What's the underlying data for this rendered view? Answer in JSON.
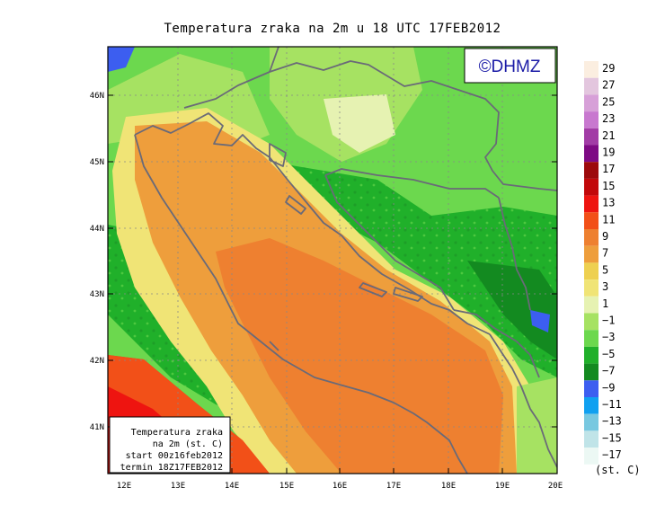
{
  "title": "Temperatura zraka na 2m u 18 UTC 17FEB2012",
  "logo": "©DHMZ",
  "axes": {
    "lat_labels": [
      "46N",
      "45N",
      "44N",
      "43N",
      "42N",
      "41N"
    ],
    "lon_labels": [
      "12E",
      "13E",
      "14E",
      "15E",
      "16E",
      "17E",
      "18E",
      "19E",
      "20E"
    ]
  },
  "infobox": {
    "lines": [
      "Temperatura zraka",
      "na 2m (st. C)",
      "start 00z16feb2012",
      "termin 18Z17FEB2012"
    ]
  },
  "legend": {
    "unit": "(st. C)",
    "labels": [
      "29",
      "27",
      "25",
      "23",
      "21",
      "19",
      "17",
      "15",
      "13",
      "11",
      "9",
      "7",
      "5",
      "3",
      "1",
      "−1",
      "−3",
      "−5",
      "−7",
      "−9",
      "−11",
      "−13",
      "−15",
      "−17"
    ],
    "colors": [
      "#fbeee0",
      "#e3c6de",
      "#d7a0d8",
      "#c878cf",
      "#a23ca6",
      "#7e0a84",
      "#9c0a0c",
      "#c2080a",
      "#ee1410",
      "#f25018",
      "#ee8030",
      "#ee9e3c",
      "#eed050",
      "#f0e476",
      "#e6f2b2",
      "#a6e262",
      "#6cd84e",
      "#20b02a",
      "#138a20",
      "#3c5ef0",
      "#10a0f0",
      "#78c8e0",
      "#c0e4e8",
      "#ecf8f4"
    ]
  }
}
